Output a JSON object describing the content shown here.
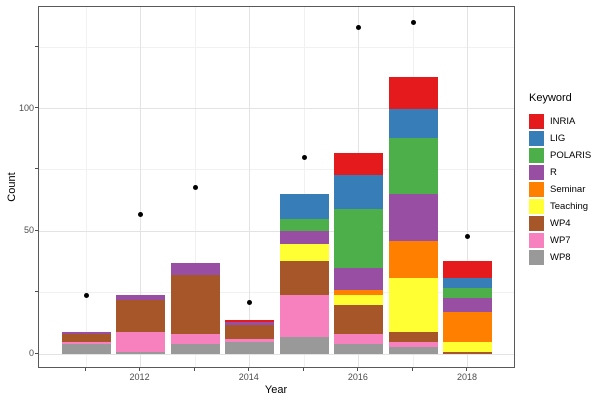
{
  "chart_data": {
    "type": "bar",
    "stacked": true,
    "title": "",
    "xlabel": "Year",
    "ylabel": "Count",
    "legend_title": "Keyword",
    "legend_position": "right",
    "grid": true,
    "background": "#ffffff",
    "panel_border_color": "#595959",
    "x": [
      2011,
      2012,
      2013,
      2014,
      2015,
      2016,
      2017,
      2018
    ],
    "x_major_ticks": [
      2012,
      2014,
      2016,
      2018
    ],
    "x_minor_ticks": [
      2011,
      2013,
      2015,
      2017
    ],
    "x_tick_labels": [
      "2012",
      "2014",
      "2016",
      "2018"
    ],
    "y_major_ticks": [
      0,
      50,
      100
    ],
    "y_tick_labels": [
      "0",
      "50",
      "100"
    ],
    "y_minor_ticks": [
      25,
      75,
      125
    ],
    "ylim": [
      0,
      141
    ],
    "series": [
      {
        "name": "INRIA",
        "color": "#e41a1c",
        "values": [
          0,
          0,
          0,
          1,
          0,
          9,
          13,
          7
        ]
      },
      {
        "name": "LIG",
        "color": "#377eb8",
        "values": [
          0,
          0,
          0,
          0,
          10,
          14,
          12,
          4
        ]
      },
      {
        "name": "POLARIS",
        "color": "#4daf4a",
        "values": [
          0,
          0,
          0,
          0,
          5,
          24,
          23,
          4
        ]
      },
      {
        "name": "R",
        "color": "#984ea3",
        "values": [
          1,
          2,
          5,
          1,
          5,
          9,
          19,
          6
        ]
      },
      {
        "name": "Seminar",
        "color": "#ff7f00",
        "values": [
          0,
          0,
          0,
          0,
          0,
          2,
          15,
          12
        ]
      },
      {
        "name": "Teaching",
        "color": "#ffff33",
        "values": [
          0,
          0,
          0,
          0,
          7,
          4,
          22,
          4
        ]
      },
      {
        "name": "WP4",
        "color": "#a65628",
        "values": [
          3,
          13,
          24,
          6,
          14,
          12,
          4,
          1
        ]
      },
      {
        "name": "WP7",
        "color": "#f781bf",
        "values": [
          1,
          8,
          4,
          1,
          17,
          4,
          2,
          0
        ]
      },
      {
        "name": "WP8",
        "color": "#999999",
        "values": [
          4,
          1,
          4,
          5,
          7,
          4,
          3,
          0
        ]
      }
    ],
    "stack_totals": [
      9,
      24,
      37,
      14,
      65,
      82,
      113,
      38
    ],
    "points": {
      "name": "total-dots",
      "color": "#000000",
      "values": [
        24,
        57,
        68,
        21,
        80,
        133,
        135,
        48
      ]
    }
  }
}
